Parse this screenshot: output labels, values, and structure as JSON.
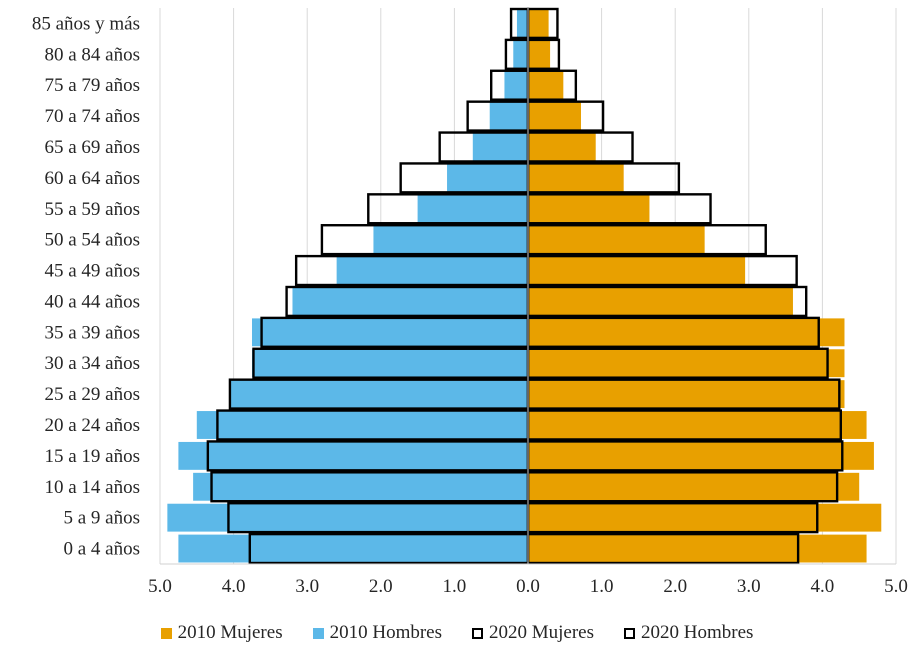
{
  "chart_data": {
    "type": "bar",
    "orientation": "horizontal",
    "title": "",
    "categories": [
      "0 a 4 años",
      "5 a 9 años",
      "10 a 14 años",
      "15 a 19 años",
      "20 a 24 años",
      "25 a 29 años",
      "30 a 34 años",
      "35 a 39 años",
      "40 a 44 años",
      "45 a 49 años",
      "50 a 54 años",
      "55 a 59 años",
      "60 a 64 años",
      "65 a 69 años",
      "70 a 74 años",
      "75 a 79 años",
      "80 a 84 años",
      "85 años y más"
    ],
    "series": [
      {
        "name": "2010 Mujeres",
        "side": "right",
        "style": "filled",
        "color": "#e8a000",
        "values": [
          4.6,
          4.8,
          4.5,
          4.7,
          4.6,
          4.3,
          4.3,
          4.3,
          3.6,
          2.95,
          2.4,
          1.65,
          1.3,
          0.92,
          0.72,
          0.48,
          0.3,
          0.28
        ]
      },
      {
        "name": "2010 Hombres",
        "side": "left",
        "style": "filled",
        "color": "#5cb8e8",
        "values": [
          4.75,
          4.9,
          4.55,
          4.75,
          4.5,
          4.05,
          3.75,
          3.75,
          3.2,
          2.6,
          2.1,
          1.5,
          1.1,
          0.75,
          0.52,
          0.32,
          0.2,
          0.15
        ]
      },
      {
        "name": "2020 Mujeres",
        "side": "right",
        "style": "outline",
        "color": "#000000",
        "values": [
          3.67,
          3.93,
          4.2,
          4.27,
          4.25,
          4.23,
          4.07,
          3.95,
          3.78,
          3.65,
          3.23,
          2.48,
          2.05,
          1.42,
          1.02,
          0.65,
          0.42,
          0.4
        ]
      },
      {
        "name": "2020 Hombres",
        "side": "left",
        "style": "outline",
        "color": "#000000",
        "values": [
          3.78,
          4.07,
          4.3,
          4.35,
          4.22,
          4.05,
          3.73,
          3.62,
          3.28,
          3.15,
          2.8,
          2.17,
          1.73,
          1.2,
          0.82,
          0.5,
          0.3,
          0.23
        ]
      }
    ],
    "xlim": [
      -5,
      5
    ],
    "xticks": [
      "5.0",
      "4.0",
      "3.0",
      "2.0",
      "1.0",
      "0.0",
      "1.0",
      "2.0",
      "3.0",
      "4.0",
      "5.0"
    ],
    "grid": "vertical",
    "legend_position": "bottom"
  }
}
